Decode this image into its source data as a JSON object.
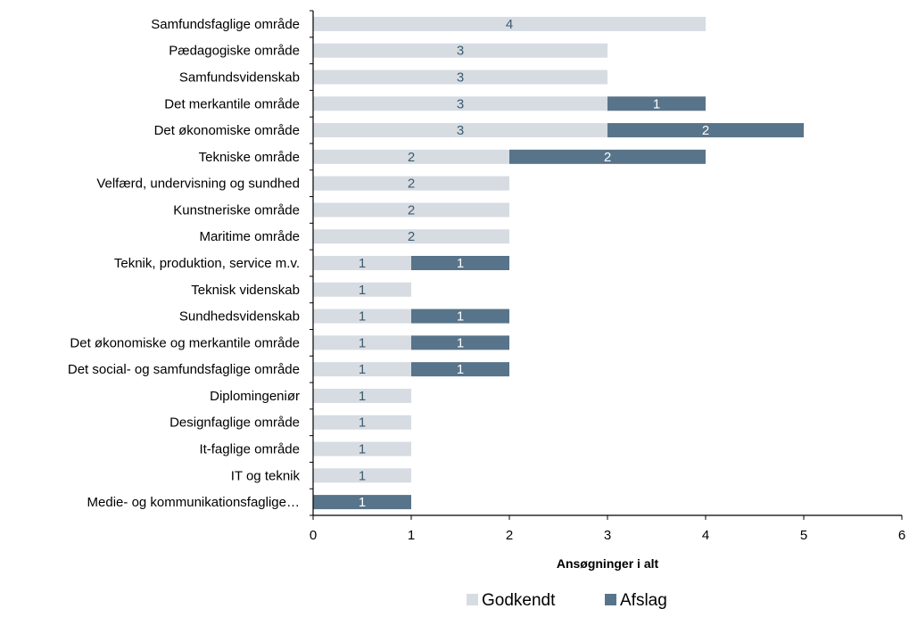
{
  "chart_data": {
    "type": "bar",
    "orientation": "horizontal",
    "stacked": true,
    "categories": [
      "Samfundsfaglige område",
      "Pædagogiske område",
      "Samfundsvidenskab",
      "Det merkantile område",
      "Det økonomiske område",
      "Tekniske område",
      "Velfærd, undervisning og sundhed",
      "Kunstneriske område",
      "Maritime område",
      "Teknik, produktion, service m.v.",
      "Teknisk videnskab",
      "Sundhedsvidenskab",
      "Det økonomiske og merkantile område",
      "Det social- og samfundsfaglige område",
      "Diplomingeniør",
      "Designfaglige område",
      "It-faglige område",
      "IT og teknik",
      "Medie- og kommunikationsfaglige…"
    ],
    "series": [
      {
        "name": "Godkendt",
        "color": "#d6dce2",
        "label_color": "#3e5a70",
        "values": [
          4,
          3,
          3,
          3,
          3,
          2,
          2,
          2,
          2,
          1,
          1,
          1,
          1,
          1,
          1,
          1,
          1,
          1,
          0
        ]
      },
      {
        "name": "Afslag",
        "color": "#58748a",
        "label_color": "#ffffff",
        "values": [
          0,
          0,
          0,
          1,
          2,
          2,
          0,
          0,
          0,
          1,
          0,
          1,
          1,
          1,
          0,
          0,
          0,
          0,
          1
        ]
      }
    ],
    "xlabel": "Ansøgninger i alt",
    "xlim": [
      0,
      6
    ],
    "xticks": [
      "0",
      "1",
      "2",
      "3",
      "4",
      "5",
      "6"
    ],
    "legend_position": "bottom",
    "grid": false
  }
}
